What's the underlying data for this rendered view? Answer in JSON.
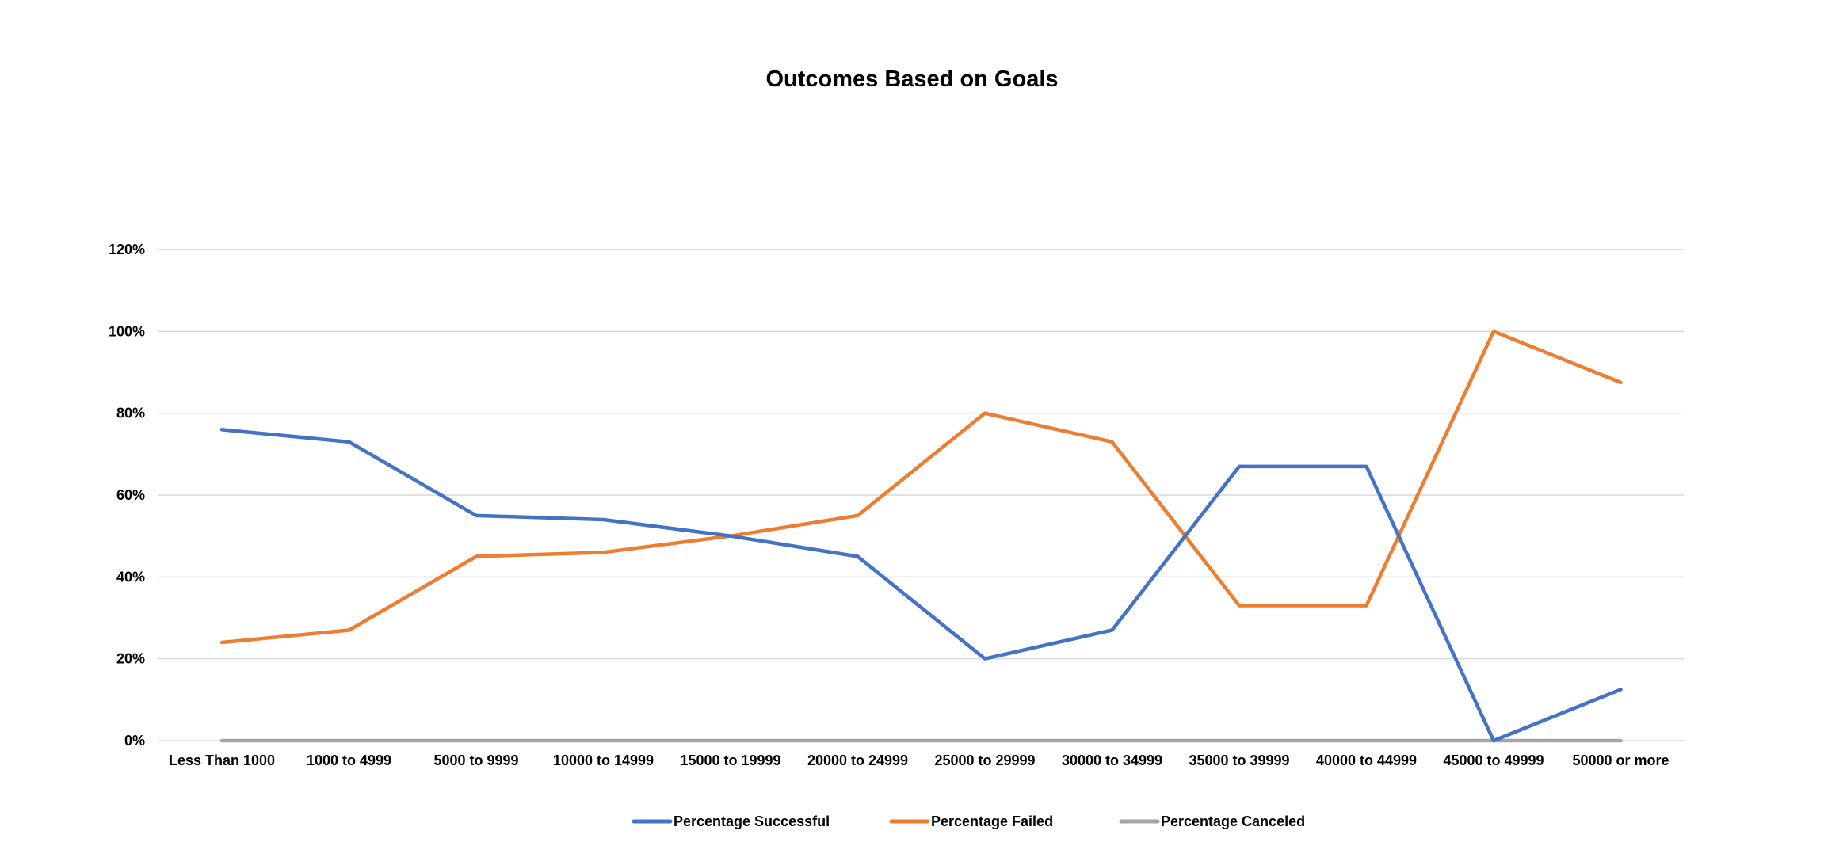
{
  "chart_data": {
    "type": "line",
    "title": "Outcomes Based on Goals",
    "xlabel": "",
    "ylabel": "",
    "categories": [
      "Less Than 1000",
      "1000 to 4999",
      "5000 to 9999",
      "10000 to 14999",
      "15000 to 19999",
      "20000 to 24999",
      "25000 to 29999",
      "30000 to 34999",
      "35000 to 39999",
      "40000 to 44999",
      "45000 to 49999",
      "50000 or more"
    ],
    "ylim": [
      0,
      1.2
    ],
    "yticks": [
      0,
      0.2,
      0.4,
      0.6,
      0.8,
      1.0,
      1.2
    ],
    "ytick_labels": [
      "0%",
      "20%",
      "40%",
      "60%",
      "80%",
      "100%",
      "120%"
    ],
    "grid": true,
    "legend_position": "bottom",
    "series": [
      {
        "name": "Percentage Successful",
        "color": "#4472C4",
        "values": [
          0.76,
          0.73,
          0.55,
          0.54,
          0.5,
          0.45,
          0.2,
          0.27,
          0.67,
          0.67,
          0.0,
          0.125
        ]
      },
      {
        "name": "Percentage Failed",
        "color": "#ED7D31",
        "values": [
          0.24,
          0.27,
          0.45,
          0.46,
          0.5,
          0.55,
          0.8,
          0.73,
          0.33,
          0.33,
          1.0,
          0.875
        ]
      },
      {
        "name": "Percentage Canceled",
        "color": "#A5A5A5",
        "values": [
          0,
          0,
          0,
          0,
          0,
          0,
          0,
          0,
          0,
          0,
          0,
          0
        ]
      }
    ]
  }
}
